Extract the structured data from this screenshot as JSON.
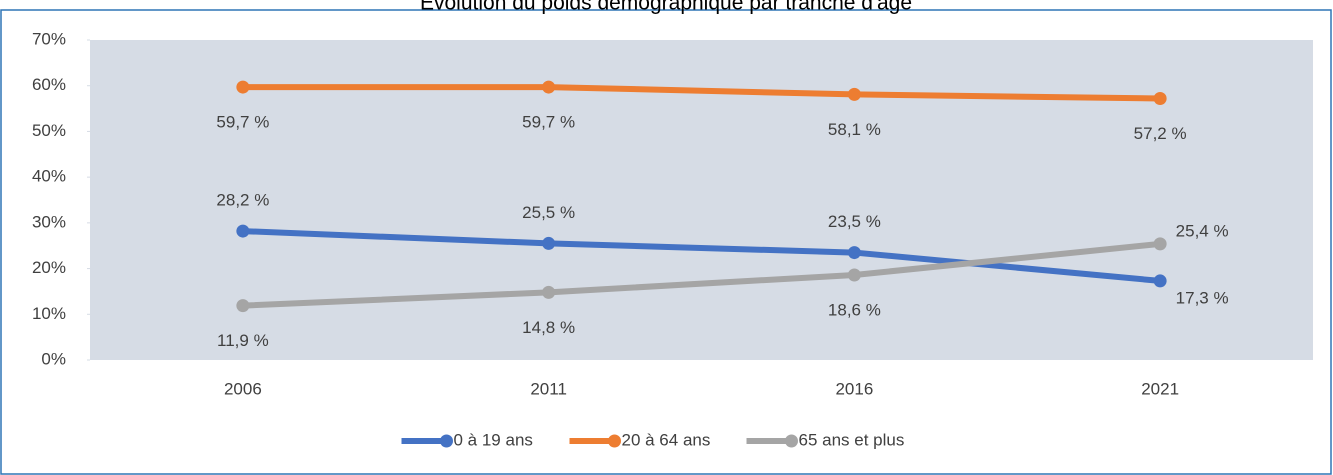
{
  "chart_data": {
    "type": "line",
    "title": "Évolution du poids démographique par tranche d'âge",
    "categories": [
      "2006",
      "2011",
      "2016",
      "2021"
    ],
    "series": [
      {
        "name": "0 à 19 ans",
        "color": "#4472c4",
        "values": [
          28.2,
          25.5,
          23.5,
          17.3
        ],
        "value_labels": [
          "28,2 %",
          "25,5 %",
          "23,5 %",
          "17,3 %"
        ]
      },
      {
        "name": "20 à 64 ans",
        "color": "#ed7d31",
        "values": [
          59.7,
          59.7,
          58.1,
          57.2
        ],
        "value_labels": [
          "59,7 %",
          "59,7 %",
          "58,1 %",
          "57,2 %"
        ]
      },
      {
        "name": "65 ans et plus",
        "color": "#a5a5a5",
        "values": [
          11.9,
          14.8,
          18.6,
          25.4
        ],
        "value_labels": [
          "11,9 %",
          "14,8 %",
          "18,6 %",
          "25,4 %"
        ]
      }
    ],
    "ylim": [
      0,
      70
    ],
    "yticks": [
      {
        "value": 0,
        "label": "0%"
      },
      {
        "value": 10,
        "label": "10%"
      },
      {
        "value": 20,
        "label": "20%"
      },
      {
        "value": 30,
        "label": "30%"
      },
      {
        "value": 40,
        "label": "40%"
      },
      {
        "value": 50,
        "label": "50%"
      },
      {
        "value": 60,
        "label": "60%"
      },
      {
        "value": 70,
        "label": "70%"
      }
    ],
    "legend": "bottom"
  }
}
